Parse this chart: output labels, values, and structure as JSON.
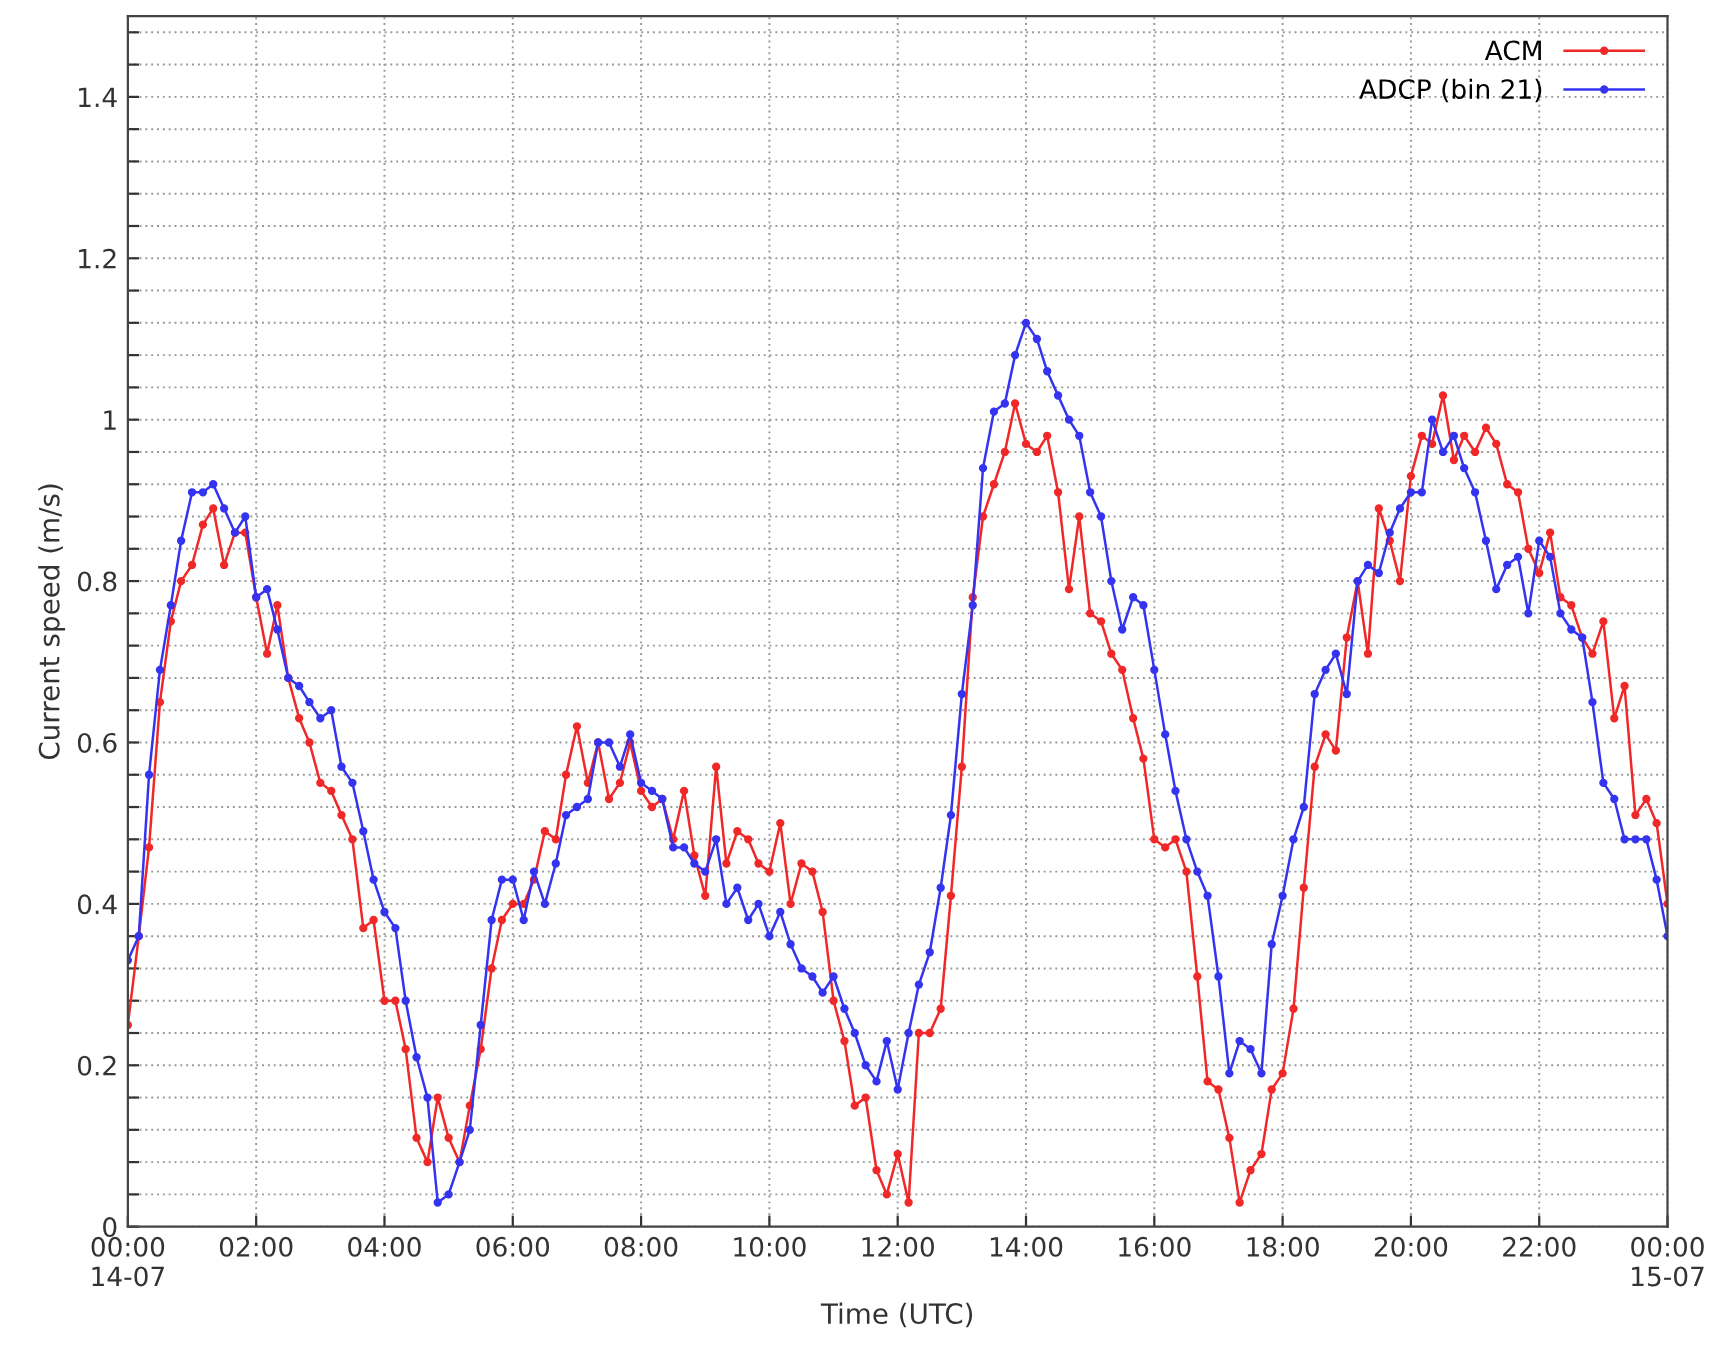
{
  "chart_data": {
    "type": "line",
    "xlabel": "Time (UTC)",
    "ylabel": "Current speed (m/s)",
    "x": [
      0,
      0.17,
      0.33,
      0.5,
      0.67,
      0.83,
      1,
      1.17,
      1.33,
      1.5,
      1.67,
      1.83,
      2,
      2.17,
      2.33,
      2.5,
      2.67,
      2.83,
      3,
      3.17,
      3.33,
      3.5,
      3.67,
      3.83,
      4,
      4.17,
      4.33,
      4.5,
      4.67,
      4.83,
      5,
      5.17,
      5.33,
      5.5,
      5.67,
      5.83,
      6,
      6.17,
      6.33,
      6.5,
      6.67,
      6.83,
      7,
      7.17,
      7.33,
      7.5,
      7.67,
      7.83,
      8,
      8.17,
      8.33,
      8.5,
      8.67,
      8.83,
      9,
      9.17,
      9.33,
      9.5,
      9.67,
      9.83,
      10,
      10.17,
      10.33,
      10.5,
      10.67,
      10.83,
      11,
      11.17,
      11.33,
      11.5,
      11.67,
      11.83,
      12,
      12.17,
      12.33,
      12.5,
      12.67,
      12.83,
      13,
      13.17,
      13.33,
      13.5,
      13.67,
      13.83,
      14,
      14.17,
      14.33,
      14.5,
      14.67,
      14.83,
      15,
      15.17,
      15.33,
      15.5,
      15.67,
      15.83,
      16,
      16.17,
      16.33,
      16.5,
      16.67,
      16.83,
      17,
      17.17,
      17.33,
      17.5,
      17.67,
      17.83,
      18,
      18.17,
      18.33,
      18.5,
      18.67,
      18.83,
      19,
      19.17,
      19.33,
      19.5,
      19.67,
      19.83,
      20,
      20.17,
      20.33,
      20.5,
      20.67,
      20.83,
      21,
      21.17,
      21.33,
      21.5,
      21.67,
      21.83,
      22,
      22.17,
      22.33,
      22.5,
      22.67,
      22.83,
      23,
      23.17,
      23.33,
      23.5,
      23.67,
      23.83,
      24
    ],
    "series": [
      {
        "name": "ACM",
        "color": "#f02828",
        "values": [
          0.25,
          0.36,
          0.47,
          0.65,
          0.75,
          0.8,
          0.82,
          0.87,
          0.89,
          0.82,
          0.86,
          0.86,
          0.78,
          0.71,
          0.77,
          0.68,
          0.63,
          0.6,
          0.55,
          0.54,
          0.51,
          0.48,
          0.37,
          0.38,
          0.28,
          0.28,
          0.22,
          0.11,
          0.08,
          0.16,
          0.11,
          0.08,
          0.15,
          0.22,
          0.32,
          0.38,
          0.4,
          0.4,
          0.43,
          0.49,
          0.48,
          0.56,
          0.62,
          0.55,
          0.6,
          0.53,
          0.55,
          0.6,
          0.54,
          0.52,
          0.53,
          0.48,
          0.54,
          0.46,
          0.41,
          0.57,
          0.45,
          0.49,
          0.48,
          0.45,
          0.44,
          0.5,
          0.4,
          0.45,
          0.44,
          0.39,
          0.28,
          0.23,
          0.15,
          0.16,
          0.07,
          0.04,
          0.09,
          0.03,
          0.24,
          0.24,
          0.27,
          0.41,
          0.57,
          0.78,
          0.88,
          0.92,
          0.96,
          1.02,
          0.97,
          0.96,
          0.98,
          0.91,
          0.79,
          0.88,
          0.76,
          0.75,
          0.71,
          0.69,
          0.63,
          0.58,
          0.48,
          0.47,
          0.48,
          0.44,
          0.31,
          0.18,
          0.17,
          0.11,
          0.03,
          0.07,
          0.09,
          0.17,
          0.19,
          0.27,
          0.42,
          0.57,
          0.61,
          0.59,
          0.73,
          0.8,
          0.71,
          0.89,
          0.85,
          0.8,
          0.93,
          0.98,
          0.97,
          1.03,
          0.95,
          0.98,
          0.96,
          0.99,
          0.97,
          0.92,
          0.91,
          0.84,
          0.81,
          0.86,
          0.78,
          0.77,
          0.73,
          0.71,
          0.75,
          0.63,
          0.67,
          0.51,
          0.53,
          0.5,
          0.4
        ]
      },
      {
        "name": "ADCP (bin 21)",
        "color": "#3434f0",
        "values": [
          0.33,
          0.36,
          0.56,
          0.69,
          0.77,
          0.85,
          0.91,
          0.91,
          0.92,
          0.89,
          0.86,
          0.88,
          0.78,
          0.79,
          0.74,
          0.68,
          0.67,
          0.65,
          0.63,
          0.64,
          0.57,
          0.55,
          0.49,
          0.43,
          0.39,
          0.37,
          0.28,
          0.21,
          0.16,
          0.03,
          0.04,
          0.08,
          0.12,
          0.25,
          0.38,
          0.43,
          0.43,
          0.38,
          0.44,
          0.4,
          0.45,
          0.51,
          0.52,
          0.53,
          0.6,
          0.6,
          0.57,
          0.61,
          0.55,
          0.54,
          0.53,
          0.47,
          0.47,
          0.45,
          0.44,
          0.48,
          0.4,
          0.42,
          0.38,
          0.4,
          0.36,
          0.39,
          0.35,
          0.32,
          0.31,
          0.29,
          0.31,
          0.27,
          0.24,
          0.2,
          0.18,
          0.23,
          0.17,
          0.24,
          0.3,
          0.34,
          0.42,
          0.51,
          0.66,
          0.77,
          0.94,
          1.01,
          1.02,
          1.08,
          1.12,
          1.1,
          1.06,
          1.03,
          1.0,
          0.98,
          0.91,
          0.88,
          0.8,
          0.74,
          0.78,
          0.77,
          0.69,
          0.61,
          0.54,
          0.48,
          0.44,
          0.41,
          0.31,
          0.19,
          0.23,
          0.22,
          0.19,
          0.35,
          0.41,
          0.48,
          0.52,
          0.66,
          0.69,
          0.71,
          0.66,
          0.8,
          0.82,
          0.81,
          0.86,
          0.89,
          0.91,
          0.91,
          1.0,
          0.96,
          0.98,
          0.94,
          0.91,
          0.85,
          0.79,
          0.82,
          0.83,
          0.76,
          0.85,
          0.83,
          0.76,
          0.74,
          0.73,
          0.65,
          0.55,
          0.53,
          0.48,
          0.48,
          0.48,
          0.43,
          0.36
        ]
      }
    ],
    "xlim": [
      0,
      24
    ],
    "xticks": [
      {
        "value": 0,
        "label": "00:00\n14-07"
      },
      {
        "value": 2,
        "label": "02:00"
      },
      {
        "value": 4,
        "label": "04:00"
      },
      {
        "value": 6,
        "label": "06:00"
      },
      {
        "value": 8,
        "label": "08:00"
      },
      {
        "value": 10,
        "label": "10:00"
      },
      {
        "value": 12,
        "label": "12:00"
      },
      {
        "value": 14,
        "label": "14:00"
      },
      {
        "value": 16,
        "label": "16:00"
      },
      {
        "value": 18,
        "label": "18:00"
      },
      {
        "value": 20,
        "label": "20:00"
      },
      {
        "value": 22,
        "label": "22:00"
      },
      {
        "value": 24,
        "label": "00:00\n15-07"
      }
    ],
    "ylim": [
      0,
      1.5
    ],
    "yticks": [
      0,
      {
        "value": 0.04,
        "label": null
      },
      {
        "value": 0.08,
        "label": null
      },
      {
        "value": 0.12,
        "label": null
      },
      {
        "value": 0.16,
        "label": null
      },
      0.2,
      {
        "value": 0.24,
        "label": null
      },
      {
        "value": 0.28,
        "label": null
      },
      {
        "value": 0.32,
        "label": null
      },
      {
        "value": 0.36,
        "label": null
      },
      0.4,
      {
        "value": 0.44,
        "label": null
      },
      {
        "value": 0.48,
        "label": null
      },
      {
        "value": 0.52,
        "label": null
      },
      {
        "value": 0.56,
        "label": null
      },
      0.6,
      {
        "value": 0.64,
        "label": null
      },
      {
        "value": 0.68,
        "label": null
      },
      {
        "value": 0.72,
        "label": null
      },
      {
        "value": 0.76,
        "label": null
      },
      0.8,
      {
        "value": 0.84,
        "label": null
      },
      {
        "value": 0.88,
        "label": null
      },
      {
        "value": 0.92,
        "label": null
      },
      {
        "value": 0.96,
        "label": null
      },
      1,
      {
        "value": 1.04,
        "label": null
      },
      {
        "value": 1.08,
        "label": null
      },
      {
        "value": 1.12,
        "label": null
      },
      {
        "value": 1.16,
        "label": null
      },
      1.2,
      {
        "value": 1.24,
        "label": null
      },
      {
        "value": 1.28,
        "label": null
      },
      {
        "value": 1.32,
        "label": null
      },
      {
        "value": 1.36,
        "label": null
      },
      1.4,
      {
        "value": 1.44,
        "label": null
      },
      {
        "value": 1.48,
        "label": null
      }
    ],
    "grid": true,
    "legend": "top right",
    "marker": "circle",
    "line_style": "solid"
  }
}
